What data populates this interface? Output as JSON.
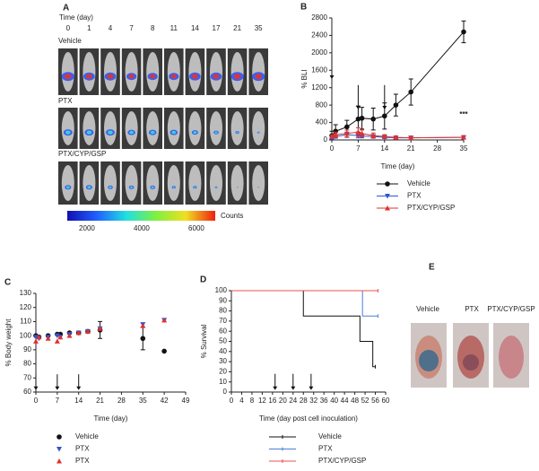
{
  "panel_a": {
    "panel_label": "A",
    "time_label": "Time (day)",
    "days": [
      "0",
      "1",
      "4",
      "7",
      "8",
      "11",
      "14",
      "17",
      "21",
      "35"
    ],
    "groups": [
      "Vehicle",
      "PTX",
      "PTX/CYP/GSP"
    ],
    "colorbar": {
      "label": "Counts",
      "range": [
        1280,
        6690
      ],
      "ticks": [
        2000,
        4000,
        6000
      ]
    }
  },
  "chart_data": [
    {
      "type": "line",
      "panel_label": "B",
      "xlabel": "Time (day)",
      "ylabel": "% BLI",
      "annotation": "***",
      "x": [
        0,
        1,
        4,
        7,
        8,
        11,
        14,
        17,
        21,
        35
      ],
      "xlim": [
        0,
        35
      ],
      "xticks": [
        0,
        7,
        14,
        21,
        28,
        35
      ],
      "ylim": [
        0,
        2800
      ],
      "yticks": [
        0,
        400,
        800,
        1200,
        1600,
        2000,
        2400,
        2800
      ],
      "arrow_days": [
        0,
        7,
        14
      ],
      "series": [
        {
          "name": "Vehicle",
          "color": "#111111",
          "marker": "circle",
          "values": [
            100,
            200,
            300,
            480,
            500,
            480,
            550,
            800,
            1100,
            2480
          ],
          "errors": [
            100,
            150,
            150,
            300,
            250,
            250,
            300,
            250,
            300,
            250
          ]
        },
        {
          "name": "PTX",
          "color": "#3355cc",
          "marker": "triangle-down",
          "values": [
            50,
            80,
            120,
            100,
            90,
            80,
            60,
            50,
            50,
            60
          ],
          "errors": [
            30,
            40,
            60,
            50,
            40,
            40,
            30,
            30,
            30,
            30
          ]
        },
        {
          "name": "PTX/CYP/GSP",
          "color": "#e03030",
          "marker": "triangle-up",
          "values": [
            80,
            120,
            150,
            180,
            150,
            100,
            80,
            60,
            50,
            60
          ],
          "errors": [
            40,
            60,
            80,
            100,
            80,
            60,
            40,
            30,
            30,
            30
          ]
        }
      ]
    },
    {
      "type": "scatter",
      "panel_label": "C",
      "xlabel": "Time (day)",
      "ylabel": "% Body weight",
      "x": [
        0,
        1,
        4,
        7,
        8,
        11,
        14,
        17,
        21,
        35,
        42
      ],
      "xlim": [
        0,
        49
      ],
      "xticks": [
        0,
        7,
        14,
        21,
        28,
        35,
        42,
        49
      ],
      "ylim": [
        60,
        130
      ],
      "yticks": [
        60,
        70,
        80,
        90,
        100,
        110,
        120,
        130
      ],
      "arrow_days": [
        0,
        7,
        14
      ],
      "series": [
        {
          "name": "Vehicle",
          "color": "#111111",
          "marker": "circle",
          "values": [
            100,
            99,
            100,
            101,
            101,
            102,
            102,
            103,
            104,
            98,
            89
          ],
          "errors": [
            null,
            null,
            null,
            null,
            null,
            null,
            null,
            null,
            6,
            8,
            null
          ]
        },
        {
          "name": "PTX",
          "color": "#3355cc",
          "marker": "triangle-down",
          "values": [
            99,
            98,
            99,
            100,
            99,
            101,
            102,
            103,
            105,
            108,
            111
          ]
        },
        {
          "name": "PTX",
          "color": "#e03030",
          "marker": "triangle-up",
          "values": [
            96,
            99,
            98,
            96,
            99,
            100,
            102,
            103,
            105,
            107,
            111
          ]
        }
      ]
    },
    {
      "type": "step",
      "panel_label": "D",
      "xlabel": "Time (day post cell inoculation)",
      "ylabel": "% Survival",
      "xlim": [
        0,
        60
      ],
      "xticks": [
        0,
        4,
        8,
        12,
        16,
        20,
        24,
        28,
        32,
        36,
        40,
        44,
        48,
        52,
        56,
        60
      ],
      "ylim": [
        0,
        100
      ],
      "yticks": [
        0,
        10,
        20,
        30,
        40,
        50,
        60,
        70,
        80,
        90,
        100
      ],
      "arrow_days": [
        17,
        24,
        31
      ],
      "series": [
        {
          "name": "Vehicle",
          "color": "#111111",
          "x": [
            0,
            28,
            50,
            55,
            56
          ],
          "values": [
            100,
            75,
            50,
            25,
            25
          ]
        },
        {
          "name": "PTX",
          "color": "#4a7fd4",
          "x": [
            0,
            51,
            57
          ],
          "values": [
            100,
            75,
            75
          ]
        },
        {
          "name": "PTX/CYP/GSP",
          "color": "#e85050",
          "x": [
            0,
            57
          ],
          "values": [
            100,
            100
          ]
        }
      ]
    }
  ],
  "panel_e": {
    "panel_label": "E",
    "groups": [
      "Vehicle",
      "PTX",
      "PTX/CYP/GSP"
    ]
  }
}
